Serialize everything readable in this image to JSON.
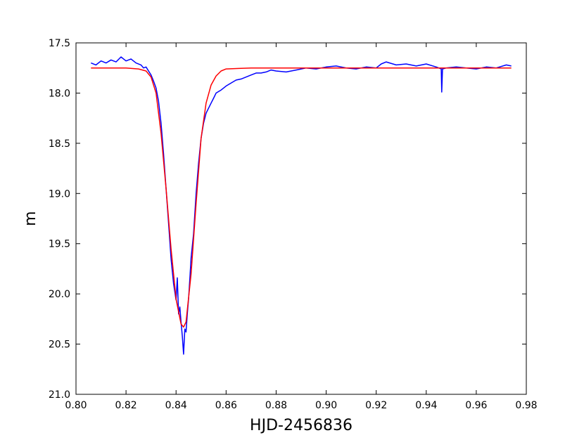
{
  "chart_data": {
    "type": "line",
    "title": "",
    "xlabel": "HJD-2456836",
    "ylabel": "m",
    "xlim": [
      0.8,
      0.98
    ],
    "ylim": [
      17.5,
      21.0
    ],
    "y_inverted": true,
    "grid": false,
    "legend": "none",
    "x_ticks": [
      0.8,
      0.82,
      0.84,
      0.86,
      0.88,
      0.9,
      0.92,
      0.94,
      0.96,
      0.98
    ],
    "x_tick_labels": [
      "0.80",
      "0.82",
      "0.84",
      "0.86",
      "0.88",
      "0.90",
      "0.92",
      "0.94",
      "0.96",
      "0.98"
    ],
    "y_ticks": [
      17.5,
      18.0,
      18.5,
      19.0,
      19.5,
      20.0,
      20.5,
      21.0
    ],
    "y_tick_labels": [
      "17.5",
      "18.0",
      "18.5",
      "19.0",
      "19.5",
      "20.0",
      "20.5",
      "21.0"
    ],
    "series": [
      {
        "color": "#0000ff",
        "x": [
          0.806,
          0.808,
          0.81,
          0.812,
          0.814,
          0.816,
          0.818,
          0.82,
          0.822,
          0.824,
          0.826,
          0.827,
          0.828,
          0.829,
          0.83,
          0.831,
          0.832,
          0.833,
          0.834,
          0.835,
          0.836,
          0.837,
          0.838,
          0.839,
          0.84,
          0.8405,
          0.841,
          0.8415,
          0.842,
          0.8425,
          0.843,
          0.8435,
          0.844,
          0.8445,
          0.845,
          0.8455,
          0.846,
          0.847,
          0.848,
          0.849,
          0.85,
          0.851,
          0.852,
          0.853,
          0.854,
          0.855,
          0.856,
          0.858,
          0.86,
          0.862,
          0.864,
          0.866,
          0.868,
          0.87,
          0.872,
          0.874,
          0.876,
          0.878,
          0.88,
          0.884,
          0.888,
          0.892,
          0.896,
          0.9,
          0.904,
          0.908,
          0.912,
          0.916,
          0.92,
          0.922,
          0.924,
          0.928,
          0.932,
          0.936,
          0.94,
          0.944,
          0.946,
          0.9462,
          0.9465,
          0.948,
          0.952,
          0.956,
          0.96,
          0.964,
          0.968,
          0.972,
          0.974
        ],
        "y": [
          17.7,
          17.72,
          17.68,
          17.7,
          17.67,
          17.69,
          17.64,
          17.68,
          17.66,
          17.7,
          17.72,
          17.75,
          17.74,
          17.78,
          17.82,
          17.88,
          17.95,
          18.08,
          18.3,
          18.6,
          18.95,
          19.3,
          19.65,
          19.9,
          20.06,
          19.84,
          20.2,
          20.13,
          20.28,
          20.42,
          20.6,
          20.35,
          20.38,
          20.2,
          20.05,
          19.85,
          19.64,
          19.4,
          19.0,
          18.7,
          18.45,
          18.3,
          18.2,
          18.15,
          18.1,
          18.05,
          18.0,
          17.97,
          17.93,
          17.9,
          17.87,
          17.86,
          17.84,
          17.82,
          17.8,
          17.8,
          17.79,
          17.77,
          17.78,
          17.79,
          17.77,
          17.75,
          17.76,
          17.74,
          17.73,
          17.75,
          17.76,
          17.74,
          17.75,
          17.71,
          17.69,
          17.72,
          17.71,
          17.73,
          17.71,
          17.74,
          17.76,
          17.99,
          17.76,
          17.75,
          17.74,
          17.75,
          17.76,
          17.74,
          17.75,
          17.72,
          17.73
        ]
      },
      {
        "color": "#ff0000",
        "x": [
          0.806,
          0.81,
          0.815,
          0.82,
          0.825,
          0.828,
          0.83,
          0.832,
          0.834,
          0.836,
          0.838,
          0.84,
          0.842,
          0.843,
          0.844,
          0.846,
          0.848,
          0.85,
          0.852,
          0.854,
          0.856,
          0.858,
          0.86,
          0.865,
          0.87,
          0.88,
          0.9,
          0.92,
          0.94,
          0.96,
          0.974
        ],
        "y": [
          17.75,
          17.75,
          17.75,
          17.75,
          17.76,
          17.78,
          17.84,
          18.0,
          18.4,
          18.95,
          19.55,
          20.05,
          20.3,
          20.33,
          20.28,
          19.8,
          19.1,
          18.45,
          18.1,
          17.92,
          17.83,
          17.78,
          17.76,
          17.755,
          17.75,
          17.75,
          17.75,
          17.75,
          17.75,
          17.75,
          17.75
        ]
      }
    ]
  }
}
